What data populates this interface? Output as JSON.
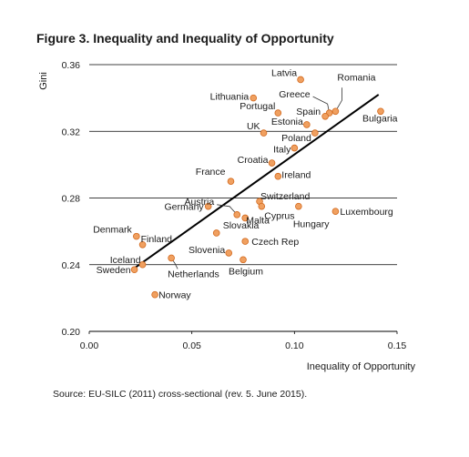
{
  "figure": {
    "title": "Figure 3. Inequality and Inequality of Opportunity",
    "source": "Source: EU-SILC (2011) cross-sectional (rev. 5. June 2015)."
  },
  "chart_data": {
    "type": "scatter",
    "title": "Figure 3. Inequality and Inequality of Opportunity",
    "xlabel": "Inequality of Opportunity",
    "ylabel": "Gini",
    "xlim": [
      0.0,
      0.15
    ],
    "ylim": [
      0.2,
      0.36
    ],
    "x_ticks": [
      "0.00",
      "0.05",
      "0.10",
      "0.15"
    ],
    "y_ticks": [
      "0.20",
      "0.24",
      "0.28",
      "0.32",
      "0.36"
    ],
    "grid": "horizontal",
    "marker_color": "#F0A060",
    "marker_edge_color": "#D2691E",
    "trendline": {
      "x": [
        0.021,
        0.141
      ],
      "y": [
        0.237,
        0.342
      ],
      "color": "#000000"
    },
    "points": [
      {
        "label": "Latvia",
        "x": 0.103,
        "y": 0.351
      },
      {
        "label": "Lithuania",
        "x": 0.08,
        "y": 0.34
      },
      {
        "label": "Romania",
        "x": 0.12,
        "y": 0.332
      },
      {
        "label": "Portugal",
        "x": 0.092,
        "y": 0.331
      },
      {
        "label": "Greece",
        "x": 0.117,
        "y": 0.331
      },
      {
        "label": "Spain",
        "x": 0.115,
        "y": 0.329
      },
      {
        "label": "Bulgaria",
        "x": 0.142,
        "y": 0.332
      },
      {
        "label": "Estonia",
        "x": 0.106,
        "y": 0.324
      },
      {
        "label": "UK",
        "x": 0.085,
        "y": 0.319
      },
      {
        "label": "Poland",
        "x": 0.11,
        "y": 0.319
      },
      {
        "label": "Italy",
        "x": 0.1,
        "y": 0.31
      },
      {
        "label": "Croatia",
        "x": 0.089,
        "y": 0.301
      },
      {
        "label": "Ireland",
        "x": 0.092,
        "y": 0.293
      },
      {
        "label": "France",
        "x": 0.069,
        "y": 0.29
      },
      {
        "label": "Austria",
        "x": 0.072,
        "y": 0.27
      },
      {
        "label": "Switzerland",
        "x": 0.083,
        "y": 0.278
      },
      {
        "label": "Germany",
        "x": 0.058,
        "y": 0.275
      },
      {
        "label": "Cyprus",
        "x": 0.084,
        "y": 0.275
      },
      {
        "label": "Luxembourg",
        "x": 0.12,
        "y": 0.272
      },
      {
        "label": "Hungary",
        "x": 0.102,
        "y": 0.275
      },
      {
        "label": "Malta",
        "x": 0.076,
        "y": 0.268
      },
      {
        "label": "Slovakia",
        "x": 0.062,
        "y": 0.259
      },
      {
        "label": "Czech Rep",
        "x": 0.076,
        "y": 0.254
      },
      {
        "label": "Denmark",
        "x": 0.023,
        "y": 0.257
      },
      {
        "label": "Finland",
        "x": 0.026,
        "y": 0.252
      },
      {
        "label": "Slovenia",
        "x": 0.068,
        "y": 0.247
      },
      {
        "label": "Iceland",
        "x": 0.026,
        "y": 0.24
      },
      {
        "label": "Belgium",
        "x": 0.075,
        "y": 0.243
      },
      {
        "label": "Netherlands",
        "x": 0.04,
        "y": 0.244
      },
      {
        "label": "Sweden",
        "x": 0.022,
        "y": 0.237
      },
      {
        "label": "Norway",
        "x": 0.032,
        "y": 0.222
      }
    ]
  }
}
